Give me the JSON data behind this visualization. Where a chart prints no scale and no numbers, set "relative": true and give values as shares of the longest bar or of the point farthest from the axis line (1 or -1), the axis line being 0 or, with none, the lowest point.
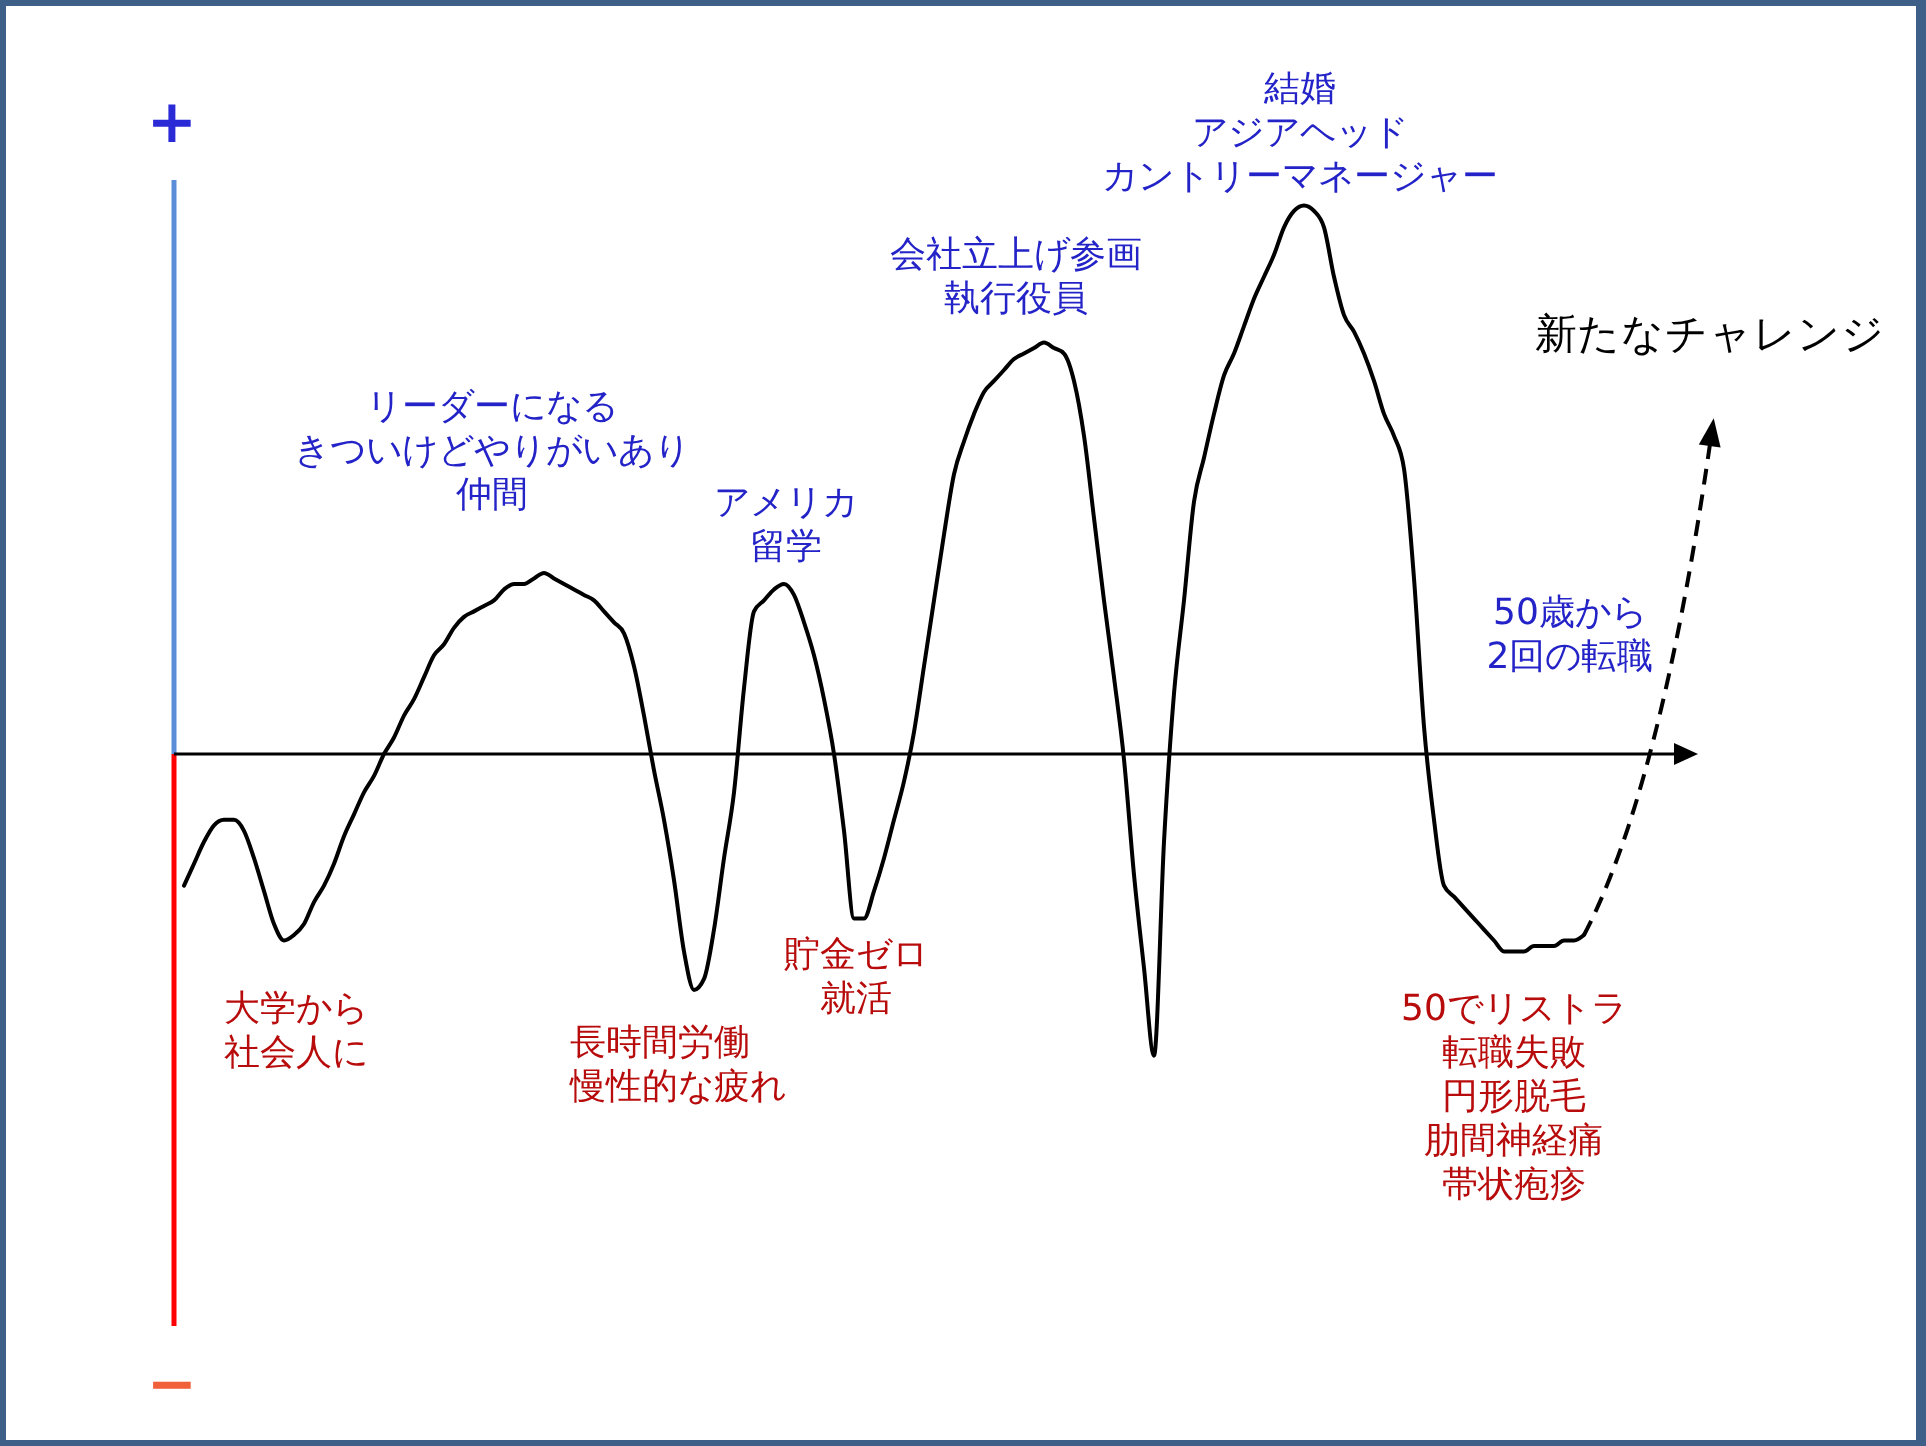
{
  "chart_data": {
    "type": "line",
    "relative": true,
    "categories": [
      null,
      null,
      null,
      null,
      null,
      null,
      null,
      null,
      null,
      null,
      null,
      null,
      null,
      null,
      null,
      null,
      null,
      null,
      null,
      null,
      null,
      null,
      null,
      null,
      null,
      null,
      null,
      null,
      null,
      null,
      null,
      null,
      null,
      null,
      null,
      null,
      null,
      null,
      null,
      null,
      null,
      null,
      null,
      null,
      null,
      null,
      null,
      null,
      null,
      null,
      null,
      null,
      null,
      null,
      null,
      null,
      null,
      null,
      null,
      null,
      null,
      null,
      null,
      null,
      null,
      null,
      null,
      null,
      null,
      null,
      null,
      null,
      null,
      null,
      null,
      null,
      null,
      null,
      null,
      null,
      null,
      null,
      null,
      null,
      null,
      null,
      null,
      null,
      null,
      null,
      null,
      null,
      null,
      null,
      null,
      null,
      null,
      null,
      null,
      null,
      null,
      null,
      null,
      null,
      null,
      null,
      null,
      null,
      null,
      null,
      null,
      null,
      null,
      null,
      null,
      null,
      null,
      null,
      null,
      null,
      null,
      null,
      null,
      null,
      null,
      null,
      null,
      null,
      null,
      null,
      null,
      null,
      null,
      null,
      null,
      null,
      null,
      null,
      null,
      null,
      null
    ],
    "series": [
      {
        "color": "#000000",
        "values": [
          -0.24,
          -0.2,
          -0.16,
          -0.13,
          -0.12,
          -0.12,
          -0.14,
          -0.19,
          -0.25,
          -0.31,
          -0.34,
          -0.33,
          -0.31,
          -0.27,
          -0.24,
          -0.2,
          -0.15,
          -0.11,
          -0.07,
          -0.04,
          0,
          0.03,
          0.07,
          0.1,
          0.14,
          0.18,
          0.2,
          0.23,
          0.25,
          0.26,
          0.27,
          0.28,
          0.3,
          0.31,
          0.31,
          0.32,
          0.33,
          0.32,
          0.31,
          0.3,
          0.29,
          0.28,
          0.26,
          0.24,
          0.22,
          0.16,
          0.07,
          -0.03,
          -0.12,
          -0.23,
          -0.36,
          -0.43,
          -0.41,
          -0.32,
          -0.19,
          -0.07,
          0.12,
          0.26,
          0.28,
          0.3,
          0.31,
          0.29,
          0.24,
          0.18,
          0.1,
          0,
          -0.14,
          -0.3,
          -0.3,
          -0.25,
          -0.19,
          -0.12,
          -0.05,
          0.04,
          0.16,
          0.28,
          0.4,
          0.51,
          0.57,
          0.62,
          0.66,
          0.68,
          0.7,
          0.72,
          0.73,
          0.74,
          0.75,
          0.74,
          0.73,
          0.68,
          0.58,
          0.43,
          0.28,
          0.14,
          -0.01,
          -0.22,
          -0.39,
          -0.55,
          -0.16,
          0.11,
          0.28,
          0.46,
          0.54,
          0.62,
          0.69,
          0.73,
          0.78,
          0.83,
          0.87,
          0.91,
          0.96,
          0.99,
          1,
          0.99,
          0.96,
          0.87,
          0.8,
          0.77,
          0.73,
          0.68,
          0.62,
          0.58,
          0.52,
          0.32,
          0.05,
          -0.12,
          -0.24,
          -0.26,
          -0.28,
          -0.3,
          -0.32,
          -0.34,
          -0.36,
          -0.36,
          -0.36,
          -0.35,
          -0.35,
          -0.35,
          -0.34,
          -0.34,
          -0.33
        ]
      }
    ],
    "annotations": [
      "+",
      "−",
      "大学から社会人に",
      "リーダーになるきついけどやりがいあり仲間",
      "長時間労働慢性的な疲れ",
      "アメリカ留学",
      "貯金ゼロ就活",
      "会社立上げ参画執行役員",
      "結婚アジアヘッドカントリーマネージャー",
      "新たなチャレンジ",
      "50歳から2回の転職",
      "50でリストラ転職失敗円形脱毛肋間神経痛帯状疱疹"
    ]
  }
}
